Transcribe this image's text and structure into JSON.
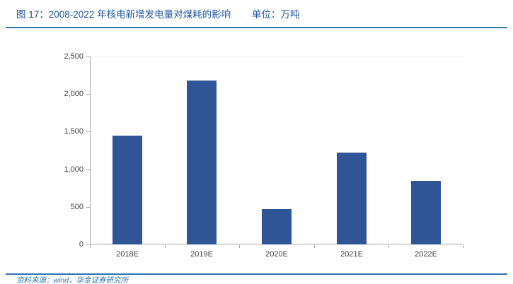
{
  "header": {
    "figure_label": "图 17：2008-2022 年核电新增发电量对煤耗的影响",
    "unit_label": "单位：万吨"
  },
  "footer": {
    "source": "资料来源：wind，华金证券研究所"
  },
  "colors": {
    "bar": "#2F5597",
    "title_text": "#1F55A4",
    "rule": "#2E74B5",
    "footer_text": "#2E74B5",
    "axis_line": "#A6A6A6",
    "plot_top_line": "#ECECEC",
    "tick_label": "#404040"
  },
  "chart_data": {
    "type": "bar",
    "title": "2008-2022 年核电新增发电量对煤耗的影响",
    "unit": "万吨",
    "categories": [
      "2018E",
      "2019E",
      "2020E",
      "2021E",
      "2022E"
    ],
    "values": [
      1450,
      2180,
      470,
      1220,
      850
    ],
    "xlabel": "",
    "ylabel": "",
    "ylim": [
      0,
      2500
    ],
    "yticks": [
      0,
      500,
      1000,
      1500,
      2000,
      2500
    ],
    "ytick_labels": [
      "0",
      "500",
      "1,000",
      "1,500",
      "2,000",
      "2,500"
    ],
    "grid": false,
    "legend": "none"
  }
}
